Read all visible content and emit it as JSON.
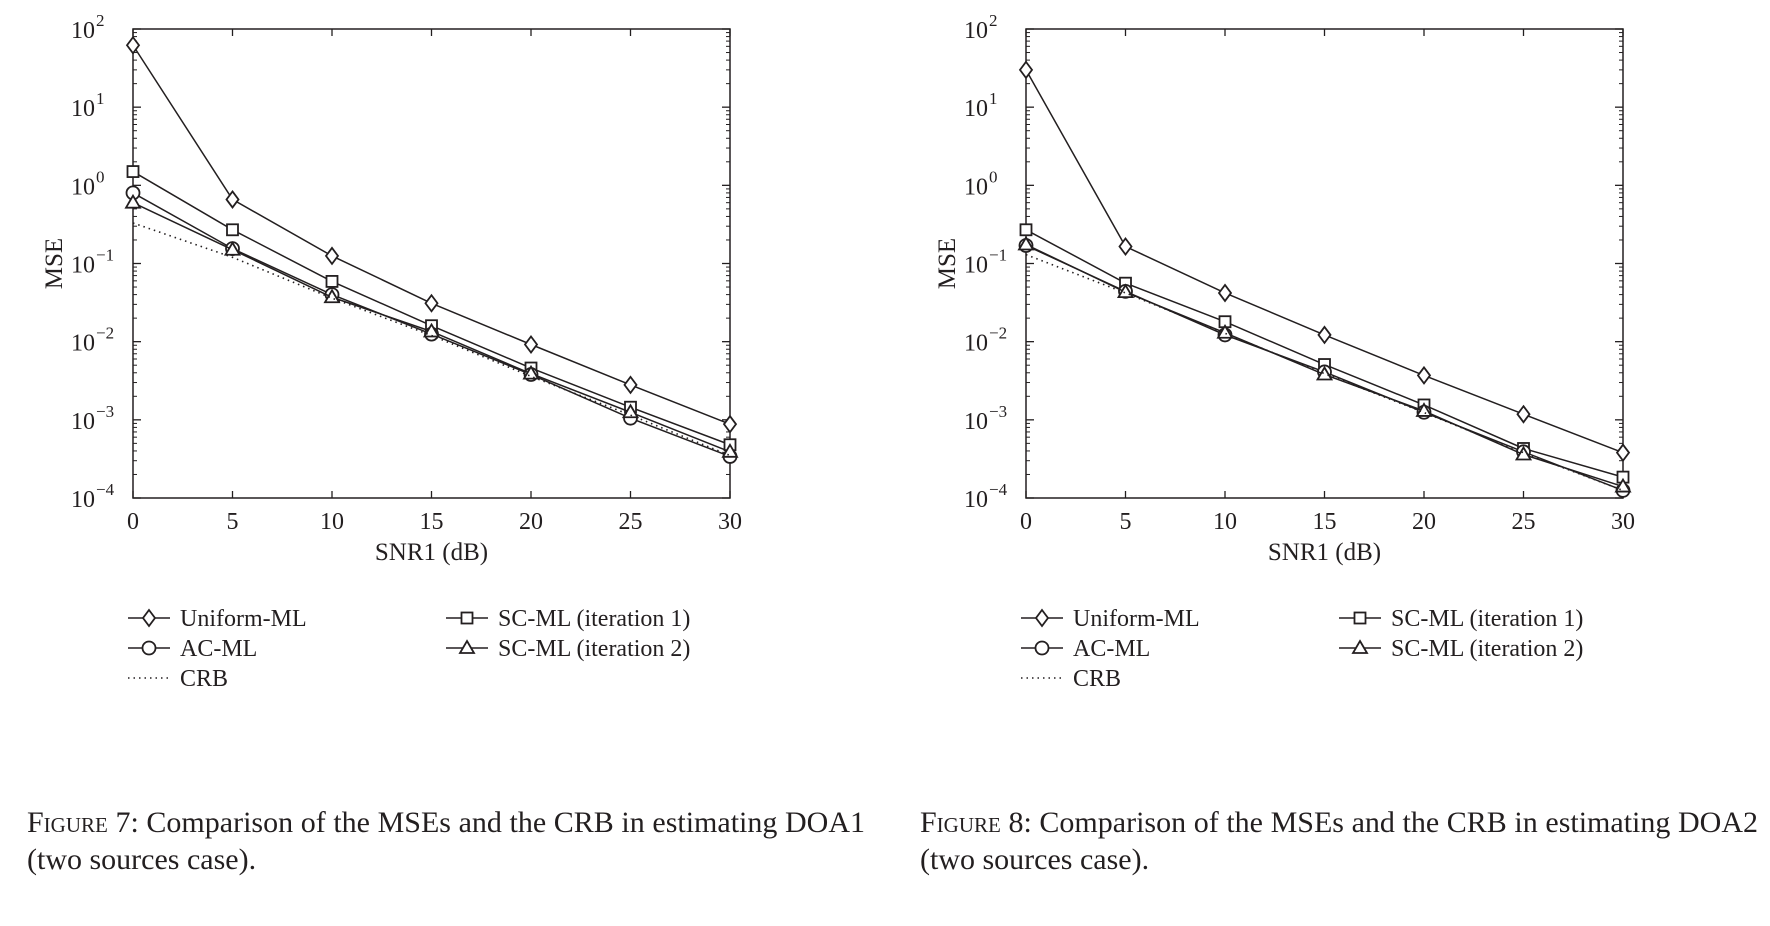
{
  "figures": [
    {
      "caption": {
        "label": "Figure 7",
        "text": ": Comparison of the MSEs and the CRB in estimating DOA1 (two sources case)."
      },
      "chart_data": {
        "type": "line",
        "xlabel": "SNR1 (dB)",
        "ylabel": "MSE",
        "xlim": [
          0,
          30
        ],
        "ylim": [
          0.0001,
          100
        ],
        "yscale": "log",
        "x_ticks": [
          "0",
          "5",
          "10",
          "15",
          "20",
          "25",
          "30"
        ],
        "y_ticks": [
          {
            "base": "10",
            "exp": "2"
          },
          {
            "base": "10",
            "exp": "1"
          },
          {
            "base": "10",
            "exp": "0"
          },
          {
            "base": "10",
            "exp": "−1"
          },
          {
            "base": "10",
            "exp": "−2"
          },
          {
            "base": "10",
            "exp": "−3"
          },
          {
            "base": "10",
            "exp": "−4"
          }
        ],
        "grid": false,
        "legend_position": "below",
        "x": [
          0,
          5,
          10,
          15,
          20,
          25,
          30
        ],
        "series": [
          {
            "name": "Uniform-ML",
            "marker": "diamond",
            "line": "solid",
            "values": [
              62,
              0.66,
              0.125,
              0.031,
              0.0092,
              0.0028,
              0.00088
            ]
          },
          {
            "name": "SC-ML (iteration 1)",
            "marker": "square",
            "line": "solid",
            "values": [
              1.5,
              0.27,
              0.059,
              0.016,
              0.0046,
              0.00145,
              0.00048
            ]
          },
          {
            "name": "AC-ML",
            "marker": "circle",
            "line": "solid",
            "values": [
              0.8,
              0.155,
              0.04,
              0.0125,
              0.0038,
              0.00105,
              0.00034
            ]
          },
          {
            "name": "SC-ML (iteration 2)",
            "marker": "triangle",
            "line": "solid",
            "values": [
              0.6,
              0.15,
              0.037,
              0.0135,
              0.0039,
              0.00125,
              0.00039
            ]
          },
          {
            "name": "CRB",
            "marker": "none",
            "line": "dotted",
            "values": [
              0.33,
              0.12,
              0.036,
              0.012,
              0.0036,
              0.00115,
              0.00035
            ]
          }
        ]
      }
    },
    {
      "caption": {
        "label": "Figure 8",
        "text": ": Comparison of the MSEs and the CRB in estimating DOA2 (two sources case)."
      },
      "chart_data": {
        "type": "line",
        "xlabel": "SNR1 (dB)",
        "ylabel": "MSE",
        "xlim": [
          0,
          30
        ],
        "ylim": [
          0.0001,
          100
        ],
        "yscale": "log",
        "x_ticks": [
          "0",
          "5",
          "10",
          "15",
          "20",
          "25",
          "30"
        ],
        "y_ticks": [
          {
            "base": "10",
            "exp": "2"
          },
          {
            "base": "10",
            "exp": "1"
          },
          {
            "base": "10",
            "exp": "0"
          },
          {
            "base": "10",
            "exp": "−1"
          },
          {
            "base": "10",
            "exp": "−2"
          },
          {
            "base": "10",
            "exp": "−3"
          },
          {
            "base": "10",
            "exp": "−4"
          }
        ],
        "grid": false,
        "legend_position": "below",
        "x": [
          0,
          5,
          10,
          15,
          20,
          25,
          30
        ],
        "series": [
          {
            "name": "Uniform-ML",
            "marker": "diamond",
            "line": "solid",
            "values": [
              30,
              0.165,
              0.042,
              0.0122,
              0.0037,
              0.00118,
              0.00038
            ]
          },
          {
            "name": "SC-ML (iteration 1)",
            "marker": "square",
            "line": "solid",
            "values": [
              0.27,
              0.056,
              0.018,
              0.0051,
              0.00155,
              0.00043,
              0.000185
            ]
          },
          {
            "name": "AC-ML",
            "marker": "circle",
            "line": "solid",
            "values": [
              0.17,
              0.044,
              0.0122,
              0.0041,
              0.00125,
              0.00039,
              0.000125
            ]
          },
          {
            "name": "SC-ML (iteration 2)",
            "marker": "triangle",
            "line": "solid",
            "values": [
              0.175,
              0.043,
              0.013,
              0.0038,
              0.0013,
              0.00036,
              0.00014
            ]
          },
          {
            "name": "CRB",
            "marker": "none",
            "line": "dotted",
            "values": [
              0.13,
              0.042,
              0.0128,
              0.0039,
              0.00124,
              0.00038,
              0.000125
            ]
          }
        ]
      }
    }
  ]
}
